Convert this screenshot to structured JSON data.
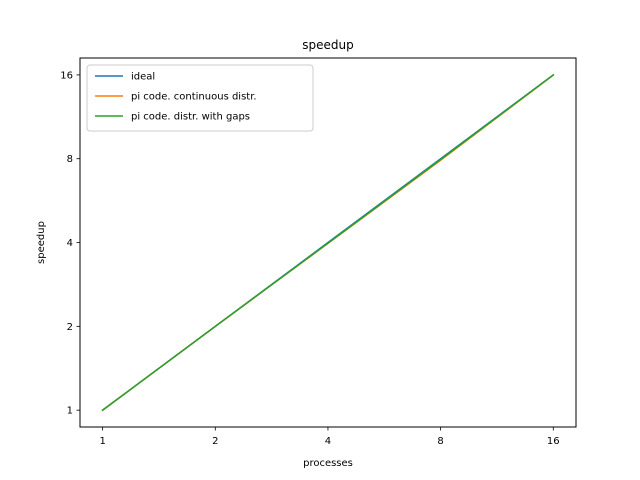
{
  "chart_data": {
    "type": "line",
    "title": "speedup",
    "xlabel": "processes",
    "ylabel": "speedup",
    "x_scale": "log2",
    "y_scale": "log2",
    "xlim": [
      0.87,
      18.4
    ],
    "ylim": [
      0.87,
      18.4
    ],
    "x_ticks": [
      1,
      2,
      4,
      8,
      16
    ],
    "y_ticks": [
      1,
      2,
      4,
      8,
      16
    ],
    "grid": false,
    "legend_position": "upper-left",
    "x": [
      1,
      2,
      4,
      8,
      16
    ],
    "series": [
      {
        "name": "ideal",
        "color": "#1f77b4",
        "values": [
          1,
          2,
          4,
          8,
          16
        ]
      },
      {
        "name": "pi code. continuous distr.",
        "color": "#ff7f0e",
        "values": [
          1,
          2,
          3.97,
          7.9,
          15.98
        ]
      },
      {
        "name": "pi code. distr. with gaps",
        "color": "#2ca02c",
        "values": [
          1,
          2,
          3.98,
          7.95,
          15.99
        ]
      }
    ]
  }
}
